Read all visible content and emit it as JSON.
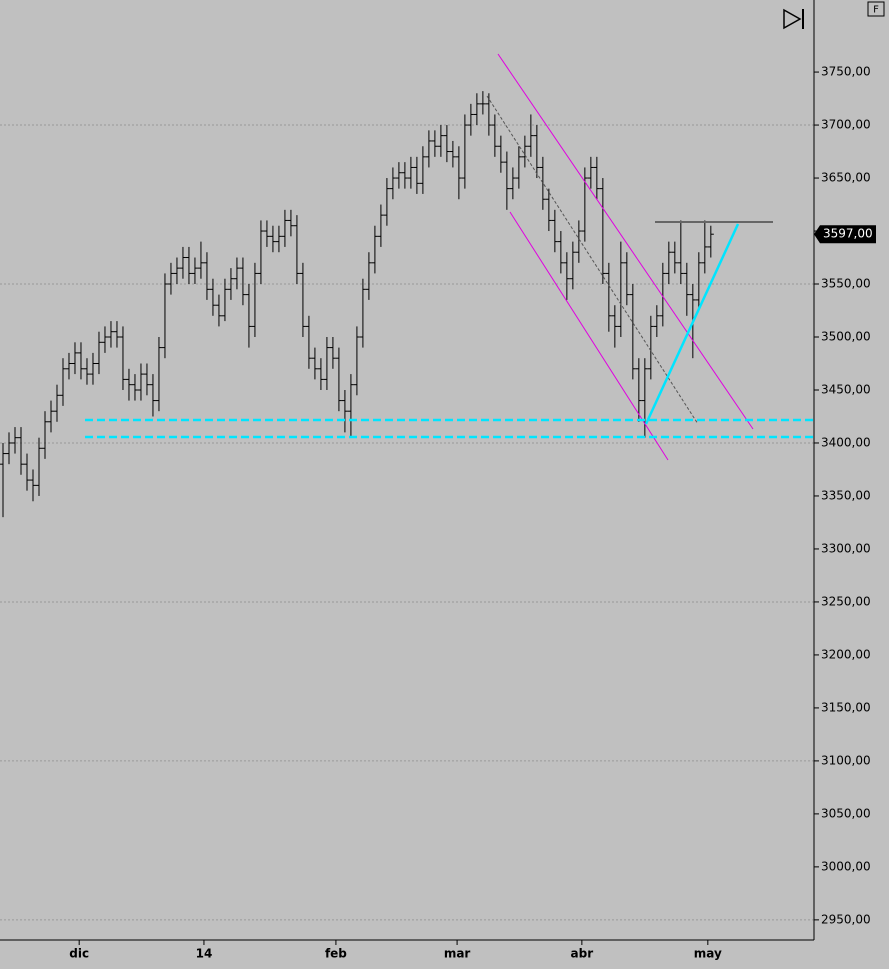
{
  "chart_data": {
    "type": "ohlc",
    "buttons": {
      "f": "F"
    },
    "last_price_label": "3597,00",
    "xlim": [
      -0.5,
      135.2
    ],
    "xticks": [
      {
        "value": 12.7,
        "label": "dic"
      },
      {
        "value": 33.5,
        "label": "14"
      },
      {
        "value": 55.5,
        "label": "feb"
      },
      {
        "value": 75.7,
        "label": "mar"
      },
      {
        "value": 96.5,
        "label": "abr"
      },
      {
        "value": 117.5,
        "label": "may"
      }
    ],
    "ylim": [
      2931,
      3818
    ],
    "yticks": [
      {
        "value": 2950,
        "label": "2950,00"
      },
      {
        "value": 3000,
        "label": "3000,00"
      },
      {
        "value": 3050,
        "label": "3050,00"
      },
      {
        "value": 3100,
        "label": "3100,00"
      },
      {
        "value": 3150,
        "label": "3150,00"
      },
      {
        "value": 3200,
        "label": "3200,00"
      },
      {
        "value": 3250,
        "label": "3250,00"
      },
      {
        "value": 3300,
        "label": "3300,00"
      },
      {
        "value": 3350,
        "label": "3350,00"
      },
      {
        "value": 3400,
        "label": "3400,00"
      },
      {
        "value": 3450,
        "label": "3450,00"
      },
      {
        "value": 3500,
        "label": "3500,00"
      },
      {
        "value": 3550,
        "label": "3550,00"
      },
      {
        "value": 3600,
        "label": "3600,00"
      },
      {
        "value": 3650,
        "label": "3650,00"
      },
      {
        "value": 3700,
        "label": "3700,00"
      },
      {
        "value": 3750,
        "label": "3750,00"
      }
    ],
    "grid": true,
    "color": "#000000",
    "open": [
      3380,
      3390,
      3400,
      3405,
      3380,
      3365,
      3360,
      3395,
      3420,
      3430,
      3445,
      3470,
      3475,
      3485,
      3470,
      3465,
      3475,
      3495,
      3500,
      3505,
      3500,
      3460,
      3455,
      3450,
      3465,
      3455,
      3440,
      3490,
      3550,
      3560,
      3565,
      3575,
      3560,
      3565,
      3570,
      3545,
      3530,
      3520,
      3545,
      3555,
      3565,
      3540,
      3510,
      3560,
      3600,
      3595,
      3590,
      3595,
      3610,
      3605,
      3560,
      3510,
      3480,
      3470,
      3460,
      3490,
      3480,
      3440,
      3430,
      3455,
      3500,
      3545,
      3570,
      3595,
      3615,
      3640,
      3650,
      3655,
      3650,
      3660,
      3645,
      3670,
      3685,
      3680,
      3690,
      3675,
      3670,
      3650,
      3700,
      3710,
      3720,
      3720,
      3700,
      3680,
      3665,
      3640,
      3650,
      3670,
      3680,
      3690,
      3660,
      3630,
      3610,
      3590,
      3570,
      3555,
      3580,
      3600,
      3650,
      3660,
      3640,
      3560,
      3520,
      3510,
      3570,
      3540,
      3470,
      3440,
      3470,
      3510,
      3520,
      3560,
      3580,
      3570,
      3560,
      3540,
      3535,
      3570,
      3585
    ],
    "high": [
      3400,
      3410,
      3415,
      3415,
      3390,
      3375,
      3405,
      3430,
      3440,
      3455,
      3480,
      3485,
      3495,
      3495,
      3480,
      3485,
      3505,
      3510,
      3515,
      3515,
      3510,
      3470,
      3465,
      3475,
      3475,
      3465,
      3500,
      3560,
      3570,
      3575,
      3585,
      3585,
      3575,
      3590,
      3580,
      3555,
      3540,
      3555,
      3565,
      3575,
      3575,
      3550,
      3570,
      3610,
      3610,
      3605,
      3605,
      3620,
      3620,
      3615,
      3570,
      3520,
      3490,
      3480,
      3500,
      3500,
      3490,
      3450,
      3465,
      3510,
      3555,
      3580,
      3605,
      3625,
      3650,
      3660,
      3665,
      3665,
      3670,
      3670,
      3680,
      3695,
      3695,
      3700,
      3700,
      3685,
      3680,
      3710,
      3720,
      3730,
      3732,
      3730,
      3710,
      3690,
      3675,
      3660,
      3680,
      3690,
      3710,
      3700,
      3670,
      3640,
      3620,
      3600,
      3580,
      3590,
      3610,
      3660,
      3670,
      3670,
      3650,
      3570,
      3530,
      3590,
      3580,
      3550,
      3480,
      3480,
      3520,
      3530,
      3570,
      3590,
      3590,
      3610,
      3570,
      3550,
      3580,
      3610,
      3605
    ],
    "low": [
      3330,
      3380,
      3390,
      3370,
      3355,
      3345,
      3350,
      3385,
      3410,
      3420,
      3435,
      3460,
      3465,
      3460,
      3455,
      3455,
      3465,
      3485,
      3490,
      3490,
      3450,
      3440,
      3440,
      3440,
      3445,
      3425,
      3430,
      3480,
      3540,
      3550,
      3555,
      3550,
      3550,
      3555,
      3535,
      3520,
      3510,
      3515,
      3535,
      3545,
      3530,
      3490,
      3500,
      3550,
      3585,
      3580,
      3580,
      3585,
      3595,
      3550,
      3500,
      3470,
      3460,
      3450,
      3450,
      3470,
      3430,
      3410,
      3405,
      3445,
      3490,
      3535,
      3560,
      3585,
      3605,
      3630,
      3640,
      3640,
      3640,
      3635,
      3635,
      3660,
      3670,
      3670,
      3665,
      3660,
      3630,
      3640,
      3690,
      3700,
      3710,
      3690,
      3670,
      3655,
      3620,
      3630,
      3640,
      3660,
      3670,
      3650,
      3620,
      3600,
      3580,
      3560,
      3535,
      3545,
      3570,
      3590,
      3640,
      3630,
      3550,
      3505,
      3490,
      3500,
      3530,
      3460,
      3420,
      3405,
      3460,
      3500,
      3510,
      3550,
      3560,
      3550,
      3520,
      3480,
      3525,
      3560,
      3575
    ],
    "close": [
      3390,
      3400,
      3405,
      3380,
      3365,
      3360,
      3395,
      3420,
      3430,
      3445,
      3470,
      3475,
      3485,
      3470,
      3465,
      3475,
      3495,
      3500,
      3505,
      3500,
      3460,
      3455,
      3450,
      3465,
      3455,
      3440,
      3490,
      3550,
      3560,
      3565,
      3575,
      3560,
      3565,
      3570,
      3545,
      3530,
      3520,
      3545,
      3555,
      3565,
      3540,
      3510,
      3560,
      3600,
      3595,
      3590,
      3595,
      3610,
      3605,
      3560,
      3510,
      3480,
      3470,
      3460,
      3490,
      3480,
      3440,
      3430,
      3455,
      3500,
      3545,
      3570,
      3595,
      3615,
      3640,
      3650,
      3655,
      3650,
      3660,
      3645,
      3670,
      3685,
      3680,
      3690,
      3675,
      3670,
      3650,
      3700,
      3710,
      3720,
      3720,
      3700,
      3680,
      3665,
      3640,
      3650,
      3670,
      3680,
      3690,
      3660,
      3630,
      3610,
      3590,
      3570,
      3555,
      3580,
      3600,
      3650,
      3660,
      3640,
      3560,
      3520,
      3510,
      3570,
      3540,
      3470,
      3440,
      3470,
      3510,
      3520,
      3560,
      3580,
      3570,
      3560,
      3540,
      3535,
      3570,
      3585,
      3597
    ]
  }
}
